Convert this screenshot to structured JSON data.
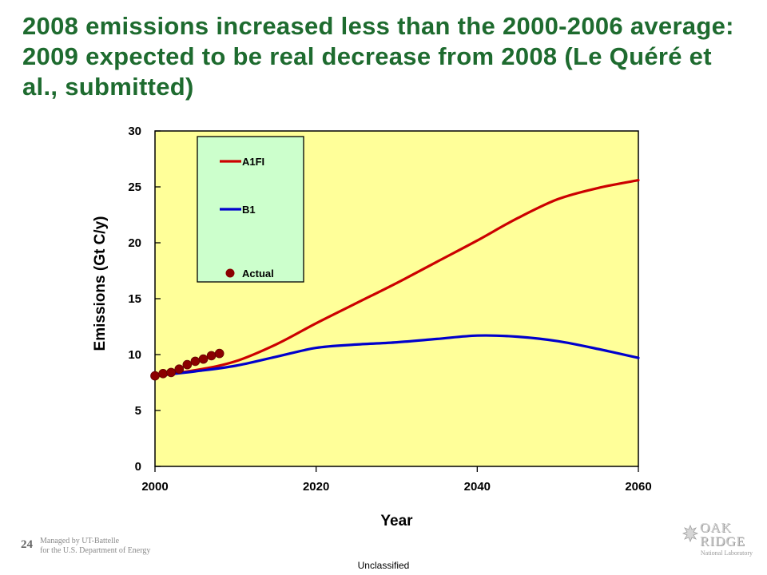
{
  "slide": {
    "title": "2008 emissions increased less than the 2000-2006 average: 2009 expected to be real decrease from 2008 (Le Quéré et al., submitted)",
    "slide_number": "24",
    "managed_by": [
      "Managed by UT-Battelle",
      "for the U.S. Department of Energy"
    ],
    "classification": "Unclassified",
    "logo": {
      "name": "oak-ridge-logo",
      "lines": [
        "OAK",
        "RIDGE"
      ],
      "subtitle": "National Laboratory"
    }
  },
  "chart_data": {
    "type": "line",
    "title": "",
    "xlabel": "Year",
    "ylabel": "Emissions (Gt C/y)",
    "xlim": [
      2000,
      2060
    ],
    "ylim": [
      0,
      30
    ],
    "x_ticks": [
      2000,
      2020,
      2040,
      2060
    ],
    "y_ticks": [
      0,
      5,
      10,
      15,
      20,
      25,
      30
    ],
    "plot_background": "#ffff99",
    "legend_background": "#ccffcc",
    "legend_position": "top-left",
    "grid": false,
    "series": [
      {
        "name": "A1FI",
        "kind": "line",
        "color": "#cc0000",
        "points": [
          [
            2000,
            8.1
          ],
          [
            2005,
            8.6
          ],
          [
            2010,
            9.4
          ],
          [
            2015,
            10.9
          ],
          [
            2020,
            12.8
          ],
          [
            2025,
            14.6
          ],
          [
            2030,
            16.4
          ],
          [
            2035,
            18.3
          ],
          [
            2040,
            20.2
          ],
          [
            2045,
            22.2
          ],
          [
            2050,
            23.9
          ],
          [
            2055,
            24.9
          ],
          [
            2060,
            25.6
          ]
        ]
      },
      {
        "name": "B1",
        "kind": "line",
        "color": "#0000cc",
        "points": [
          [
            2000,
            8.1
          ],
          [
            2005,
            8.5
          ],
          [
            2010,
            9.0
          ],
          [
            2015,
            9.8
          ],
          [
            2020,
            10.6
          ],
          [
            2025,
            10.9
          ],
          [
            2030,
            11.1
          ],
          [
            2035,
            11.4
          ],
          [
            2040,
            11.7
          ],
          [
            2045,
            11.6
          ],
          [
            2050,
            11.2
          ],
          [
            2055,
            10.5
          ],
          [
            2060,
            9.7
          ]
        ]
      },
      {
        "name": "Actual",
        "kind": "scatter",
        "color": "#8b0000",
        "points": [
          [
            2000,
            8.1
          ],
          [
            2001,
            8.3
          ],
          [
            2002,
            8.4
          ],
          [
            2003,
            8.7
          ],
          [
            2004,
            9.1
          ],
          [
            2005,
            9.4
          ],
          [
            2006,
            9.6
          ],
          [
            2007,
            9.9
          ],
          [
            2008,
            10.1
          ]
        ]
      }
    ]
  }
}
